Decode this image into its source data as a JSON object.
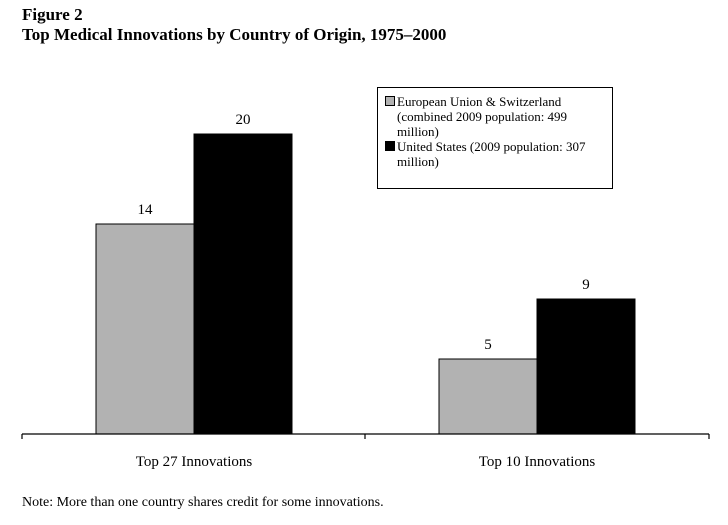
{
  "figure": {
    "label": "Figure 2",
    "title": "Top Medical Innovations by Country of Origin, 1975–2000"
  },
  "legend": {
    "items": [
      {
        "label": "European Union & Switzerland (combined 2009 population: 499 million)",
        "color": "#b2b2b2"
      },
      {
        "label": "United States (2009 population: 307 million)",
        "color": "#000000"
      }
    ]
  },
  "note": "Note: More than one country shares credit for some innovations.",
  "chart_data": {
    "type": "bar",
    "title": "Top Medical Innovations by Country of Origin, 1975–2000",
    "categories": [
      "Top 27 Innovations",
      "Top 10 Innovations"
    ],
    "series": [
      {
        "name": "European Union & Switzerland (combined 2009 population: 499 million)",
        "values": [
          14,
          5
        ],
        "color": "#b2b2b2"
      },
      {
        "name": "United States (2009 population: 307 million)",
        "values": [
          20,
          9
        ],
        "color": "#000000"
      }
    ],
    "ylim": [
      0,
      20
    ],
    "grid": false,
    "y_axis_visible": false,
    "data_labels": true,
    "legend_position": "top-right"
  }
}
